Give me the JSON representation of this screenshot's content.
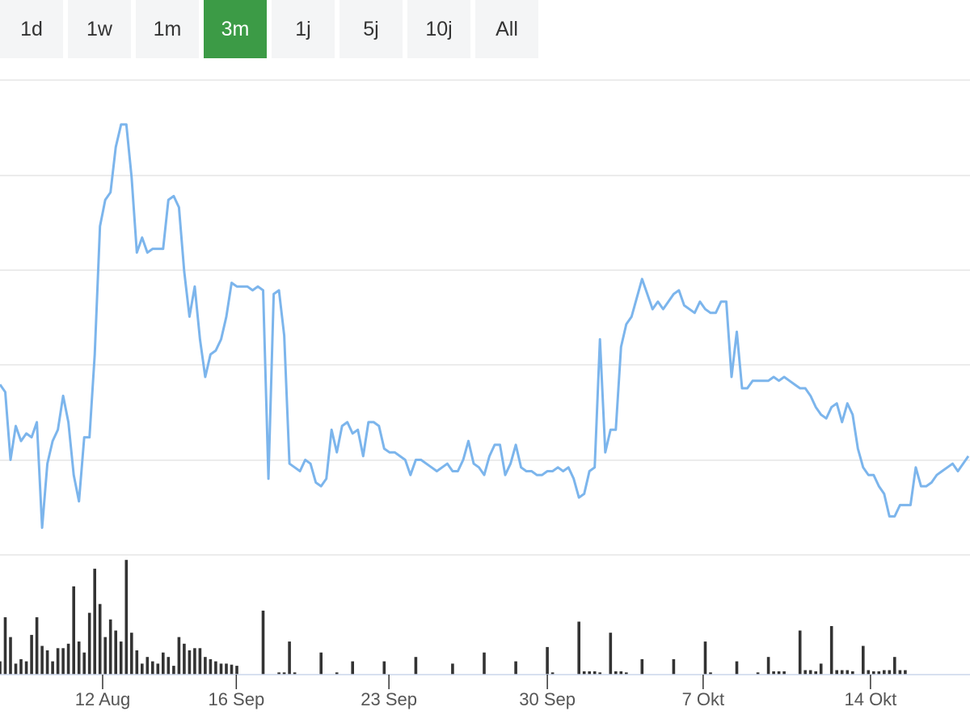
{
  "range_buttons": [
    {
      "label": "1d",
      "active": false
    },
    {
      "label": "1w",
      "active": false
    },
    {
      "label": "1m",
      "active": false
    },
    {
      "label": "3m",
      "active": true
    },
    {
      "label": "1j",
      "active": false
    },
    {
      "label": "5j",
      "active": false
    },
    {
      "label": "10j",
      "active": false
    },
    {
      "label": "All",
      "active": false
    }
  ],
  "colors": {
    "active_button": "#3c9b46",
    "button_bg": "#f4f5f6",
    "price_line": "#7cb5ec",
    "volume_bars": "#333333",
    "grid": "#e6e6e6"
  },
  "chart_data": [
    {
      "type": "line",
      "name": "",
      "grid": true,
      "y_axis_labels": false,
      "values": [
        0.35,
        0.33,
        0.15,
        0.24,
        0.2,
        0.22,
        0.21,
        0.25,
        -0.03,
        0.14,
        0.2,
        0.23,
        0.32,
        0.25,
        0.11,
        0.04,
        0.21,
        0.21,
        0.43,
        0.77,
        0.84,
        0.86,
        0.98,
        1.04,
        1.04,
        0.9,
        0.7,
        0.74,
        0.7,
        0.71,
        0.71,
        0.71,
        0.84,
        0.85,
        0.82,
        0.65,
        0.53,
        0.61,
        0.47,
        0.37,
        0.43,
        0.44,
        0.47,
        0.53,
        0.62,
        0.61,
        0.61,
        0.61,
        0.6,
        0.61,
        0.6,
        0.1,
        0.59,
        0.6,
        0.48,
        0.14,
        0.13,
        0.12,
        0.15,
        0.14,
        0.09,
        0.08,
        0.1,
        0.23,
        0.17,
        0.24,
        0.25,
        0.22,
        0.23,
        0.16,
        0.25,
        0.25,
        0.24,
        0.18,
        0.17,
        0.17,
        0.16,
        0.15,
        0.11,
        0.15,
        0.15,
        0.14,
        0.13,
        0.12,
        0.13,
        0.14,
        0.12,
        0.12,
        0.15,
        0.2,
        0.14,
        0.13,
        0.11,
        0.16,
        0.19,
        0.19,
        0.11,
        0.14,
        0.19,
        0.13,
        0.12,
        0.12,
        0.11,
        0.11,
        0.12,
        0.12,
        0.13,
        0.12,
        0.13,
        0.1,
        0.05,
        0.06,
        0.12,
        0.13,
        0.47,
        0.17,
        0.23,
        0.23,
        0.45,
        0.51,
        0.53,
        0.58,
        0.63,
        0.59,
        0.55,
        0.57,
        0.55,
        0.57,
        0.59,
        0.6,
        0.56,
        0.55,
        0.54,
        0.57,
        0.55,
        0.54,
        0.54,
        0.57,
        0.57,
        0.37,
        0.49,
        0.34,
        0.34,
        0.36,
        0.36,
        0.36,
        0.36,
        0.37,
        0.36,
        0.37,
        0.36,
        0.35,
        0.34,
        0.34,
        0.32,
        0.29,
        0.27,
        0.26,
        0.29,
        0.3,
        0.25,
        0.3,
        0.27,
        0.18,
        0.13,
        0.11,
        0.11,
        0.08,
        0.06,
        0.0,
        0.0,
        0.03,
        0.03,
        0.03,
        0.13,
        0.08,
        0.08,
        0.09,
        0.11,
        0.12,
        0.13,
        0.14,
        0.12,
        0.14,
        0.16
      ]
    },
    {
      "type": "bar",
      "name": "",
      "y_axis_labels": false,
      "bars": [
        [
          0,
          0.12
        ],
        [
          1,
          0.52
        ],
        [
          2,
          0.34
        ],
        [
          3,
          0.1
        ],
        [
          4,
          0.14
        ],
        [
          5,
          0.12
        ],
        [
          6,
          0.36
        ],
        [
          7,
          0.52
        ],
        [
          8,
          0.26
        ],
        [
          9,
          0.22
        ],
        [
          10,
          0.12
        ],
        [
          11,
          0.24
        ],
        [
          12,
          0.24
        ],
        [
          13,
          0.28
        ],
        [
          14,
          0.8
        ],
        [
          15,
          0.3
        ],
        [
          16,
          0.2
        ],
        [
          17,
          0.56
        ],
        [
          18,
          0.96
        ],
        [
          19,
          0.64
        ],
        [
          20,
          0.34
        ],
        [
          21,
          0.5
        ],
        [
          22,
          0.4
        ],
        [
          23,
          0.3
        ],
        [
          24,
          1.04
        ],
        [
          25,
          0.38
        ],
        [
          26,
          0.22
        ],
        [
          27,
          0.1
        ],
        [
          28,
          0.16
        ],
        [
          29,
          0.12
        ],
        [
          30,
          0.1
        ],
        [
          31,
          0.2
        ],
        [
          32,
          0.16
        ],
        [
          33,
          0.08
        ],
        [
          34,
          0.34
        ],
        [
          35,
          0.28
        ],
        [
          36,
          0.22
        ],
        [
          37,
          0.24
        ],
        [
          38,
          0.24
        ],
        [
          39,
          0.16
        ],
        [
          40,
          0.14
        ],
        [
          41,
          0.12
        ],
        [
          42,
          0.1
        ],
        [
          43,
          0.1
        ],
        [
          44,
          0.09
        ],
        [
          45,
          0.08
        ],
        [
          50,
          0.58
        ],
        [
          53,
          0.02
        ],
        [
          54,
          0.02
        ],
        [
          55,
          0.3
        ],
        [
          56,
          0.02
        ],
        [
          61,
          0.2
        ],
        [
          64,
          0.02
        ],
        [
          67,
          0.12
        ],
        [
          73,
          0.12
        ],
        [
          79,
          0.16
        ],
        [
          86,
          0.1
        ],
        [
          92,
          0.2
        ],
        [
          98,
          0.12
        ],
        [
          104,
          0.25
        ],
        [
          105,
          0.02
        ],
        [
          110,
          0.48
        ],
        [
          111,
          0.03
        ],
        [
          112,
          0.03
        ],
        [
          113,
          0.03
        ],
        [
          114,
          0.02
        ],
        [
          116,
          0.38
        ],
        [
          117,
          0.03
        ],
        [
          118,
          0.03
        ],
        [
          119,
          0.02
        ],
        [
          122,
          0.14
        ],
        [
          128,
          0.14
        ],
        [
          134,
          0.3
        ],
        [
          135,
          0.02
        ],
        [
          140,
          0.12
        ],
        [
          144,
          0.02
        ],
        [
          146,
          0.16
        ],
        [
          147,
          0.03
        ],
        [
          148,
          0.03
        ],
        [
          149,
          0.03
        ],
        [
          152,
          0.4
        ],
        [
          153,
          0.04
        ],
        [
          154,
          0.04
        ],
        [
          155,
          0.03
        ],
        [
          156,
          0.1
        ],
        [
          158,
          0.44
        ],
        [
          159,
          0.04
        ],
        [
          160,
          0.04
        ],
        [
          161,
          0.04
        ],
        [
          162,
          0.03
        ],
        [
          164,
          0.26
        ],
        [
          165,
          0.04
        ],
        [
          166,
          0.03
        ],
        [
          167,
          0.03
        ],
        [
          168,
          0.04
        ],
        [
          169,
          0.04
        ],
        [
          170,
          0.16
        ],
        [
          171,
          0.04
        ],
        [
          172,
          0.04
        ]
      ]
    }
  ],
  "x_axis": {
    "tick_labels": [
      {
        "label": "12 Aug",
        "index": 19.5
      },
      {
        "label": "16 Sep",
        "index": 44.9
      },
      {
        "label": "23 Sep",
        "index": 73.9
      },
      {
        "label": "30 Sep",
        "index": 104
      },
      {
        "label": "7 Okt",
        "index": 133.6
      },
      {
        "label": "14 Okt",
        "index": 165.4
      }
    ]
  }
}
